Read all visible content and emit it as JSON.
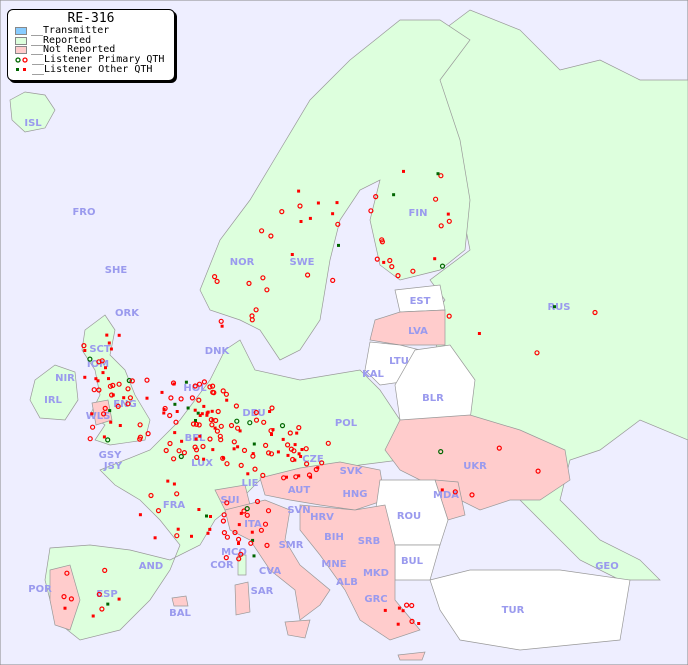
{
  "legend": {
    "title": "RE-316",
    "items": [
      {
        "label": "__Transmitter",
        "color": "#88ccff"
      },
      {
        "label": "__Reported",
        "color": "#ddffdd"
      },
      {
        "label": "__Not Reported",
        "color": "#ffcccc"
      },
      {
        "label": "__Listener Primary QTH",
        "marker": "circle",
        "colors": [
          "#006600",
          "#ff0000"
        ]
      },
      {
        "label": "__Listener Other QTH",
        "marker": "square",
        "colors": [
          "#006600",
          "#ff0000"
        ]
      }
    ]
  },
  "colors": {
    "sea": "#eeeeff",
    "reported": "#ddffdd",
    "not_reported": "#ffcccc",
    "no_data": "#ffffff",
    "label": "#9a9aee"
  },
  "countries": [
    {
      "code": "ISL",
      "status": "reported"
    },
    {
      "code": "FRO",
      "status": "reported"
    },
    {
      "code": "SHE",
      "status": "reported"
    },
    {
      "code": "ORK",
      "status": "reported"
    },
    {
      "code": "NOR",
      "status": "reported"
    },
    {
      "code": "SWE",
      "status": "reported"
    },
    {
      "code": "FIN",
      "status": "reported"
    },
    {
      "code": "RUS",
      "status": "reported"
    },
    {
      "code": "EST",
      "status": "none"
    },
    {
      "code": "LVA",
      "status": "not_reported"
    },
    {
      "code": "LTU",
      "status": "none"
    },
    {
      "code": "KAL",
      "status": "none"
    },
    {
      "code": "BLR",
      "status": "none"
    },
    {
      "code": "DNK",
      "status": "reported"
    },
    {
      "code": "HOL",
      "status": "reported"
    },
    {
      "code": "DEU",
      "status": "reported"
    },
    {
      "code": "POL",
      "status": "reported"
    },
    {
      "code": "SCT",
      "status": "reported"
    },
    {
      "code": "NIR",
      "status": "reported"
    },
    {
      "code": "IOM",
      "status": "reported"
    },
    {
      "code": "IRL",
      "status": "reported"
    },
    {
      "code": "ENG",
      "status": "reported"
    },
    {
      "code": "WLS",
      "status": "not_reported"
    },
    {
      "code": "GSY",
      "status": "reported"
    },
    {
      "code": "JSY",
      "status": "reported"
    },
    {
      "code": "BEL",
      "status": "not_reported"
    },
    {
      "code": "LUX",
      "status": "reported"
    },
    {
      "code": "CZE",
      "status": "reported"
    },
    {
      "code": "SVK",
      "status": "not_reported"
    },
    {
      "code": "UKR",
      "status": "not_reported"
    },
    {
      "code": "MDA",
      "status": "not_reported"
    },
    {
      "code": "FRA",
      "status": "reported"
    },
    {
      "code": "SUI",
      "status": "not_reported"
    },
    {
      "code": "LIE",
      "status": "reported"
    },
    {
      "code": "AUT",
      "status": "not_reported"
    },
    {
      "code": "HNG",
      "status": "not_reported"
    },
    {
      "code": "SVN",
      "status": "not_reported"
    },
    {
      "code": "HRV",
      "status": "not_reported"
    },
    {
      "code": "ROU",
      "status": "none"
    },
    {
      "code": "ITA",
      "status": "not_reported"
    },
    {
      "code": "SMR",
      "status": "not_reported"
    },
    {
      "code": "BIH",
      "status": "not_reported"
    },
    {
      "code": "SRB",
      "status": "not_reported"
    },
    {
      "code": "MCO",
      "status": "not_reported"
    },
    {
      "code": "COR",
      "status": "reported"
    },
    {
      "code": "BUL",
      "status": "none"
    },
    {
      "code": "MNE",
      "status": "not_reported"
    },
    {
      "code": "CVA",
      "status": "not_reported"
    },
    {
      "code": "ALB",
      "status": "not_reported"
    },
    {
      "code": "MKD",
      "status": "not_reported"
    },
    {
      "code": "GEO",
      "status": "reported"
    },
    {
      "code": "AND",
      "status": "reported"
    },
    {
      "code": "POR",
      "status": "not_reported"
    },
    {
      "code": "ESP",
      "status": "reported"
    },
    {
      "code": "SAR",
      "status": "not_reported"
    },
    {
      "code": "GRC",
      "status": "not_reported"
    },
    {
      "code": "TUR",
      "status": "none"
    },
    {
      "code": "BAL",
      "status": "not_reported"
    }
  ]
}
